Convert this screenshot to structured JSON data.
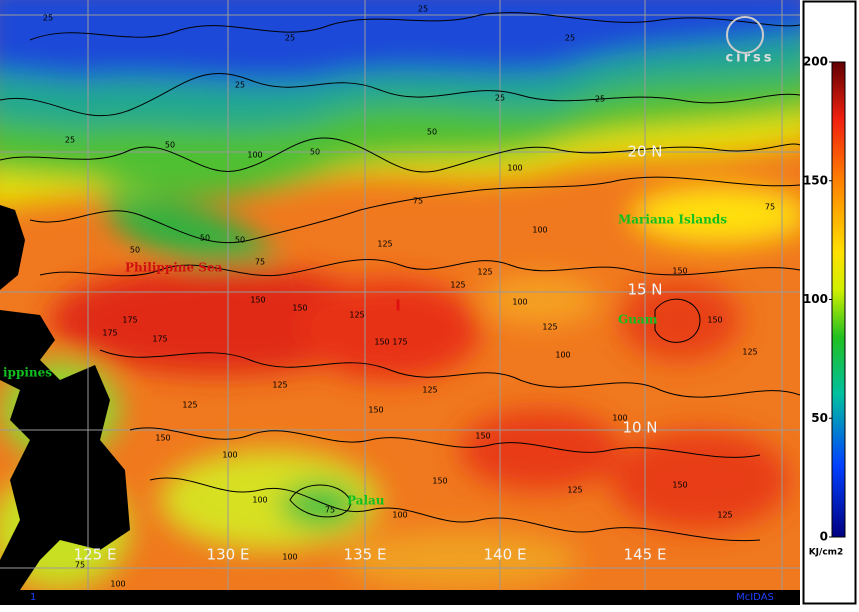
{
  "map": {
    "logo": "cirss",
    "grid_labels": [
      "20 N",
      "15 N",
      "10 N",
      "125 E",
      "130 E",
      "135 E",
      "140 E",
      "145 E"
    ],
    "places": [
      "Philippine Sea",
      "Mariana Islands",
      "Guam",
      "Palau",
      "ippines"
    ],
    "marker": "I",
    "contour_labels": [
      25,
      25,
      25,
      25,
      25,
      25,
      25,
      25,
      50,
      50,
      50,
      50,
      50,
      50,
      75,
      75,
      75,
      75,
      75,
      100,
      100,
      100,
      100,
      100,
      100,
      100,
      100,
      100,
      100,
      100,
      125,
      125,
      125,
      125,
      125,
      125,
      125,
      125,
      125,
      125,
      125,
      150,
      150,
      150,
      150,
      150,
      150,
      150,
      150,
      150,
      150,
      175,
      175,
      175,
      175
    ],
    "footer_left": "1",
    "footer_right": "McIDAS"
  },
  "colorbar": {
    "range": [
      0,
      200
    ],
    "ticks": [
      0,
      50,
      100,
      150,
      200
    ],
    "unit": "KJ/cm2"
  }
}
